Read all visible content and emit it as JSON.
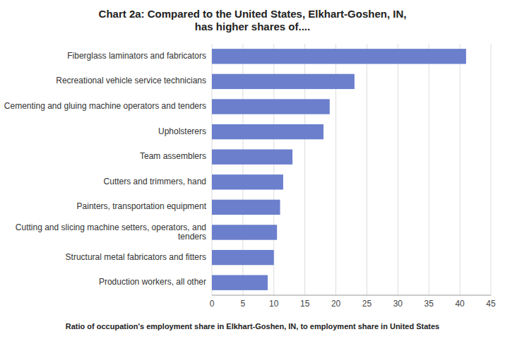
{
  "chart_data": {
    "type": "bar",
    "orientation": "horizontal",
    "title": "Chart 2a: Compared to the United States, Elkhart-Goshen, IN,\nhas higher shares of....",
    "categories": [
      "Production workers, all other",
      "Structural metal fabricators and fitters",
      "Cutting and slicing machine setters, operators, and\ntenders",
      "Painters, transportation equipment",
      "Cutters and trimmers, hand",
      "Team assemblers",
      "Upholsterers",
      "Cementing and gluing machine operators and tenders",
      "Recreational vehicle service technicians",
      "Fiberglass laminators and fabricators"
    ],
    "values": [
      9,
      10,
      10.5,
      11,
      11.5,
      13,
      18,
      19,
      23,
      41
    ],
    "color": "#6b7fcd",
    "xlabel": "Ratio of occupation's employment share in Elkhart-Goshen, IN, to employment share in United States",
    "xlim": [
      0,
      45
    ],
    "xticks": [
      0,
      5,
      10,
      15,
      20,
      25,
      30,
      35,
      40,
      45
    ],
    "grid": true
  }
}
